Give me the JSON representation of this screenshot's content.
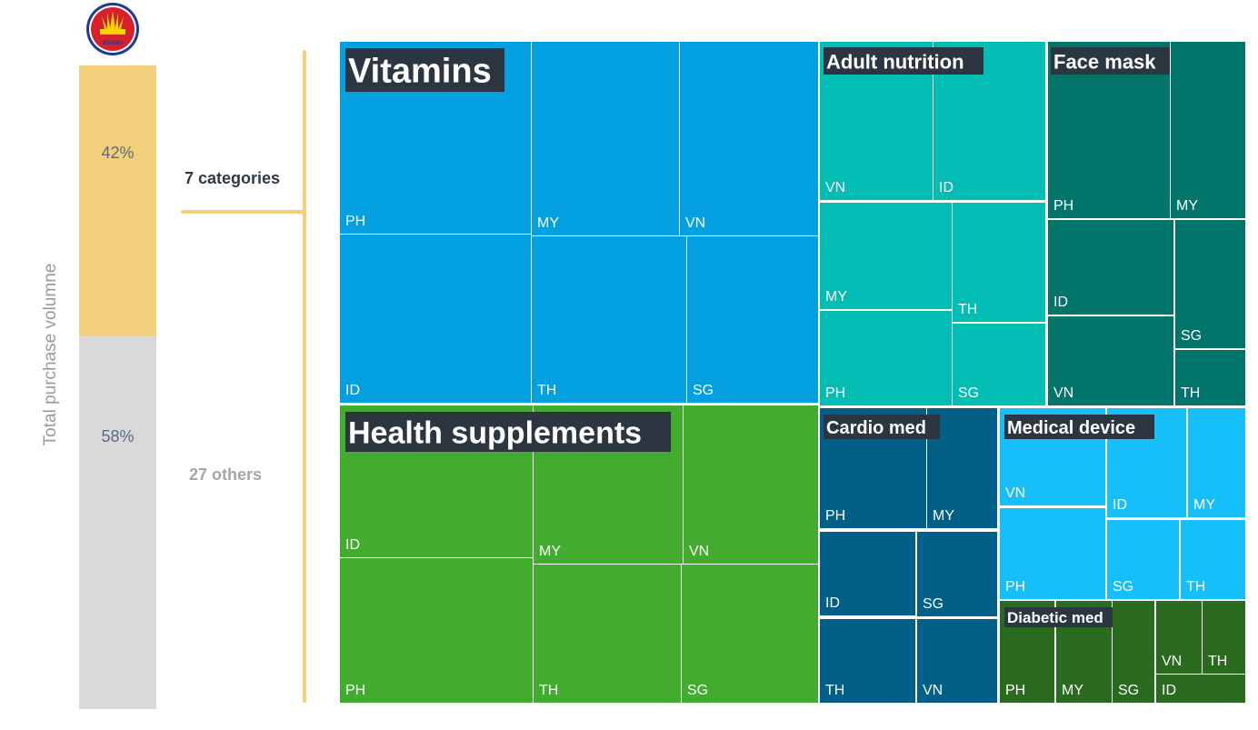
{
  "logo": {
    "text": "asean",
    "colors": {
      "outer": "#d8202a",
      "inner": "#f5d300",
      "ring": "#1f3b8f"
    }
  },
  "side_bar": {
    "axis_label": "Total purchase volumne",
    "top_segment": {
      "percent": 42,
      "label": "42%",
      "color": "#f2d07b"
    },
    "bottom_segment": {
      "percent": 58,
      "label": "58%",
      "color": "#d9d9d9"
    },
    "categories_label": "7 categories",
    "others_label": "27 others"
  },
  "chart_data": {
    "type": "treemap",
    "groups": [
      {
        "name": "Vitamins",
        "color": "#02a0e0",
        "cells": [
          "PH",
          "MY",
          "VN",
          "ID",
          "TH",
          "SG"
        ]
      },
      {
        "name": "Health supplements",
        "color": "#42ac2f",
        "cells": [
          "ID",
          "MY",
          "VN",
          "PH",
          "TH",
          "SG"
        ]
      },
      {
        "name": "Adult nutrition",
        "color": "#02bdb3",
        "cells": [
          "VN",
          "ID",
          "MY",
          "TH",
          "PH",
          "SG"
        ]
      },
      {
        "name": "Face mask",
        "color": "#01756a",
        "cells": [
          "PH",
          "MY",
          "ID",
          "SG",
          "VN",
          "TH"
        ]
      },
      {
        "name": "Cardio med",
        "color": "#025f87",
        "cells": [
          "PH",
          "MY",
          "ID",
          "SG",
          "TH",
          "VN"
        ]
      },
      {
        "name": "Medical device",
        "color": "#16bff9",
        "cells": [
          "VN",
          "ID",
          "MY",
          "PH",
          "SG",
          "TH"
        ]
      },
      {
        "name": "Diabetic med",
        "color": "#2a6b1f",
        "cells": [
          "PH",
          "MY",
          "SG",
          "VN",
          "TH",
          "ID"
        ]
      }
    ]
  }
}
